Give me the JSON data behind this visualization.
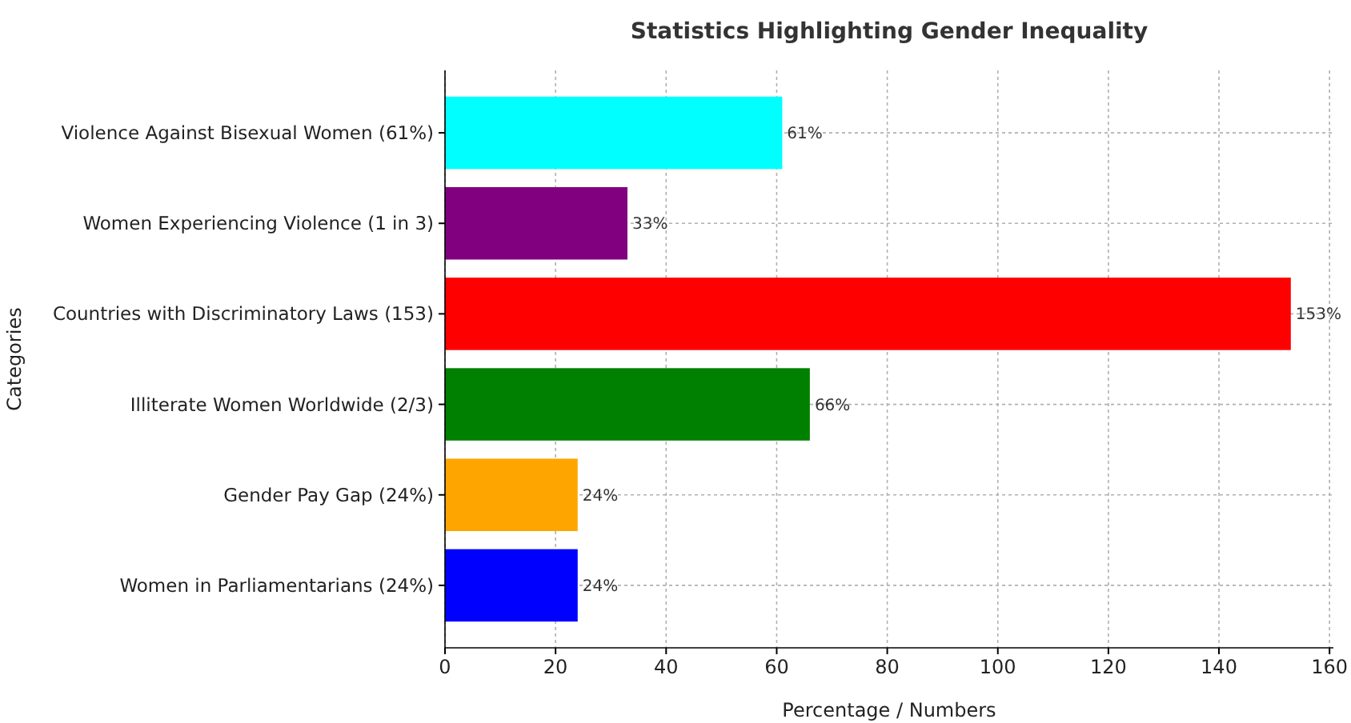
{
  "chart_data": {
    "type": "bar",
    "orientation": "horizontal",
    "title": "Statistics Highlighting Gender Inequality",
    "xlabel": "Percentage / Numbers",
    "ylabel": "Categories",
    "categories": [
      "Violence Against Bisexual Women (61%)",
      "Women Experiencing Violence (1 in 3)",
      "Countries with Discriminatory Laws (153)",
      "Illiterate Women Worldwide (2/3)",
      "Gender Pay Gap (24%)",
      "Women in Parliamentarians (24%)"
    ],
    "values": [
      61,
      33,
      153,
      66,
      24,
      24
    ],
    "colors": [
      "#00ffff",
      "#800080",
      "#ff0000",
      "#008000",
      "#ffa500",
      "#0000ff"
    ],
    "value_labels": [
      "61%",
      "33%",
      "153%",
      "66%",
      "24%",
      "24%"
    ],
    "xlim": [
      0,
      160.7
    ],
    "xticks": [
      0,
      20,
      40,
      60,
      80,
      100,
      120,
      140,
      160
    ],
    "grid": true
  }
}
